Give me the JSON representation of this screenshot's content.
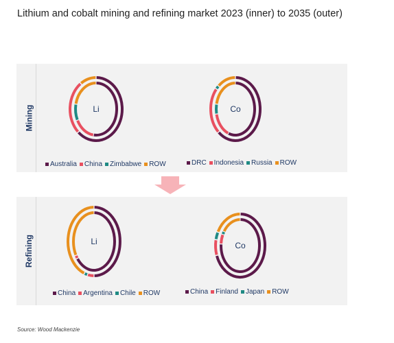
{
  "title": "Lithium and cobalt mining and refining market 2023 (inner) to 2035 (outer)",
  "source": "Source: Wood Mackenzie",
  "colors": {
    "dark_purple": "#5c1a4a",
    "pink": "#e85060",
    "teal": "#1f8a84",
    "orange": "#e8901e",
    "panel_bg": "#f2f2f2",
    "arrow": "#f7b3b8"
  },
  "panels": {
    "mining": {
      "label": "Mining"
    },
    "refining": {
      "label": "Refining"
    }
  },
  "chart_data": [
    {
      "type": "pie",
      "subtype": "double-donut",
      "panel": "Mining",
      "center_label": "Li",
      "legend": [
        "Australia",
        "China",
        "Zimbabwe",
        "ROW"
      ],
      "inner_2023": [
        {
          "name": "Australia",
          "value": 52
        },
        {
          "name": "China",
          "value": 16
        },
        {
          "name": "Zimbabwe",
          "value": 10
        },
        {
          "name": "ROW",
          "value": 22
        }
      ],
      "outer_2035": [
        {
          "name": "Australia",
          "value": 62
        },
        {
          "name": "China",
          "value": 28
        },
        {
          "name": "Zimbabwe",
          "value": 0
        },
        {
          "name": "ROW",
          "value": 10
        }
      ]
    },
    {
      "type": "pie",
      "subtype": "double-donut",
      "panel": "Mining",
      "center_label": "Co",
      "legend": [
        "DRC",
        "Indonesia",
        "Russia",
        "ROW"
      ],
      "inner_2023": [
        {
          "name": "DRC",
          "value": 56
        },
        {
          "name": "Indonesia",
          "value": 16
        },
        {
          "name": "Russia",
          "value": 6
        },
        {
          "name": "ROW",
          "value": 22
        }
      ],
      "outer_2035": [
        {
          "name": "DRC",
          "value": 62
        },
        {
          "name": "Indonesia",
          "value": 24
        },
        {
          "name": "Russia",
          "value": 2
        },
        {
          "name": "ROW",
          "value": 12
        }
      ]
    },
    {
      "type": "pie",
      "subtype": "double-donut",
      "panel": "Refining",
      "center_label": "Li",
      "legend": [
        "China",
        "Argentina",
        "Chile",
        "ROW"
      ],
      "inner_2023": [
        {
          "name": "China",
          "value": 65
        },
        {
          "name": "Argentina",
          "value": 2
        },
        {
          "name": "Chile",
          "value": 0
        },
        {
          "name": "ROW",
          "value": 33
        }
      ],
      "outer_2035": [
        {
          "name": "China",
          "value": 50
        },
        {
          "name": "Argentina",
          "value": 4
        },
        {
          "name": "Chile",
          "value": 2
        },
        {
          "name": "ROW",
          "value": 44
        }
      ]
    },
    {
      "type": "pie",
      "subtype": "double-donut",
      "panel": "Refining",
      "center_label": "Co",
      "legend": [
        "China",
        "Finland",
        "Japan",
        "ROW"
      ],
      "inner_2023": [
        {
          "name": "China",
          "value": 76
        },
        {
          "name": "Finland",
          "value": 6
        },
        {
          "name": "Japan",
          "value": 2
        },
        {
          "name": "ROW",
          "value": 16
        }
      ],
      "outer_2035": [
        {
          "name": "China",
          "value": 70
        },
        {
          "name": "Finland",
          "value": 8
        },
        {
          "name": "Japan",
          "value": 4
        },
        {
          "name": "ROW",
          "value": 18
        }
      ]
    }
  ]
}
